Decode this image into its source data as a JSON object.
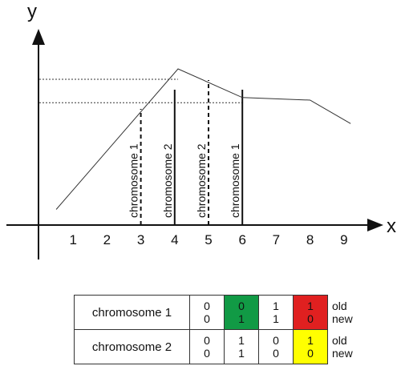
{
  "axes": {
    "x_name": "x",
    "y_name": "y",
    "x_ticks": [
      "1",
      "2",
      "3",
      "4",
      "5",
      "6",
      "7",
      "8",
      "9"
    ]
  },
  "line": {
    "points": [
      [
        0.5,
        0.06
      ],
      [
        4.1,
        0.6
      ],
      [
        6.0,
        0.49
      ],
      [
        8.0,
        0.48
      ],
      [
        9.2,
        0.39
      ]
    ],
    "reference_levels": [
      0.56,
      0.47
    ]
  },
  "markers": [
    {
      "x": 3.0,
      "label": "chromosome 1",
      "style": "dashed"
    },
    {
      "x": 4.0,
      "label": "chromosome 2",
      "style": "solid"
    },
    {
      "x": 5.0,
      "label": "chromosome 2",
      "style": "dashed"
    },
    {
      "x": 6.0,
      "label": "chromosome 1",
      "style": "solid"
    }
  ],
  "table": {
    "tags": {
      "old": "old",
      "new": "new"
    },
    "rows": [
      {
        "name": "chromosome 1",
        "cells": [
          {
            "old": "0",
            "new": "0",
            "color": "#ffffff"
          },
          {
            "old": "0",
            "new": "1",
            "color": "#119a45"
          },
          {
            "old": "1",
            "new": "1",
            "color": "#ffffff"
          },
          {
            "old": "1",
            "new": "0",
            "color": "#e02020"
          }
        ]
      },
      {
        "name": "chromosome 2",
        "cells": [
          {
            "old": "0",
            "new": "0",
            "color": "#ffffff"
          },
          {
            "old": "1",
            "new": "1",
            "color": "#ffffff"
          },
          {
            "old": "0",
            "new": "0",
            "color": "#ffffff"
          },
          {
            "old": "1",
            "new": "0",
            "color": "#ffff00"
          }
        ]
      }
    ]
  }
}
